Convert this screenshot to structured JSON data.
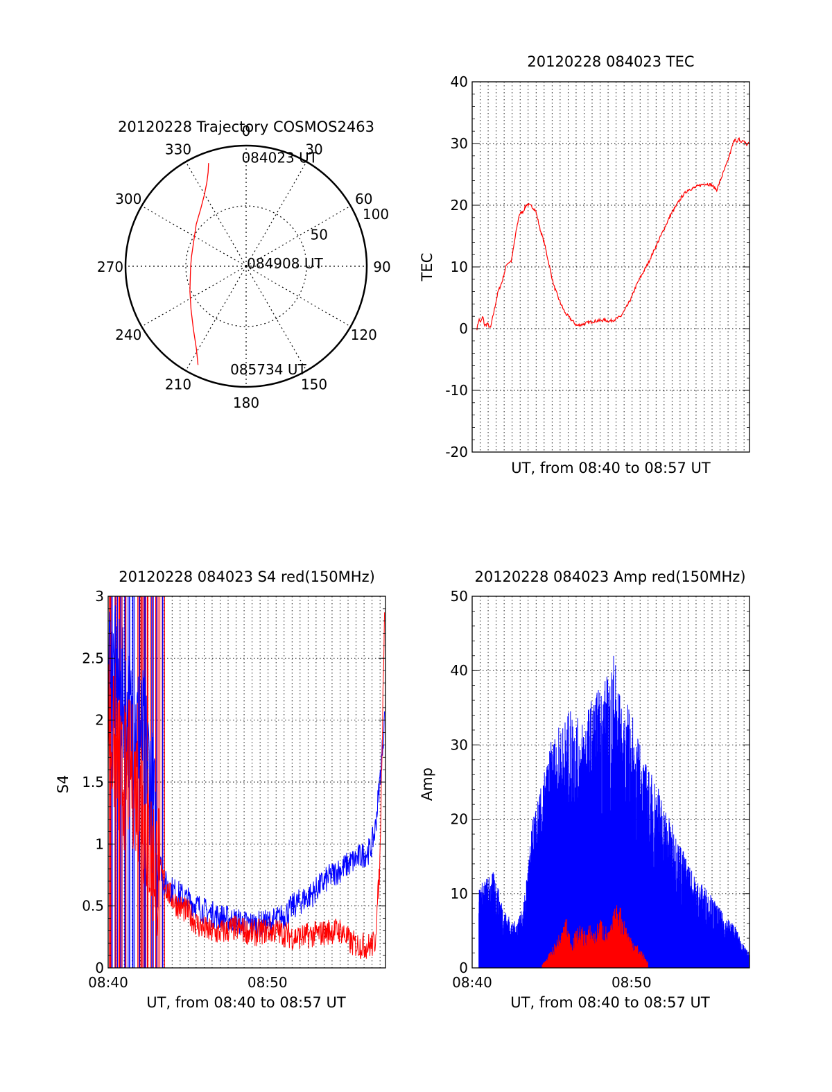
{
  "colors": {
    "red": "#ff0000",
    "blue": "#0000ff",
    "grid": "#000000",
    "frame": "#000000"
  },
  "chart_data": [
    {
      "id": "polar",
      "type": "scatter",
      "subtype": "polar-trajectory",
      "title": "20120228 Trajectory COSMOS2463",
      "radial_ticks": [
        50,
        100
      ],
      "radial_tick_labels": [
        "50",
        "100"
      ],
      "radial_range": [
        0,
        100
      ],
      "angle_labels": [
        {
          "deg": 0,
          "label": "0"
        },
        {
          "deg": 30,
          "label": "30"
        },
        {
          "deg": 60,
          "label": "60"
        },
        {
          "deg": 90,
          "label": "90"
        },
        {
          "deg": 120,
          "label": "120"
        },
        {
          "deg": 150,
          "label": "150"
        },
        {
          "deg": 180,
          "label": "180"
        },
        {
          "deg": 210,
          "label": "210"
        },
        {
          "deg": 240,
          "label": "240"
        },
        {
          "deg": 270,
          "label": "270"
        },
        {
          "deg": 300,
          "label": "300"
        },
        {
          "deg": 330,
          "label": "330"
        }
      ],
      "trajectory": {
        "name": "",
        "azimuth_deg": [
          340,
          338,
          335,
          330,
          322,
          310,
          295,
          280,
          270,
          260,
          246,
          232,
          220,
          211,
          206
        ],
        "radius": [
          91,
          84,
          77,
          69,
          61,
          54,
          48,
          46,
          46,
          47,
          51,
          58,
          68,
          80,
          91
        ]
      },
      "point_labels": [
        {
          "text": "084023 UT",
          "azimuth_deg": 352,
          "radius": 89
        },
        {
          "text": "084908 UT",
          "azimuth_deg": 275,
          "radius": 8
        },
        {
          "text": "085734 UT",
          "azimuth_deg": 194,
          "radius": 90
        }
      ],
      "grid": true
    },
    {
      "id": "tec",
      "type": "line",
      "title": "20120228 084023 TEC",
      "xlabel": "UT, from 08:40 to 08:57 UT",
      "ylabel": "TEC",
      "xlim": [
        8.667,
        8.956
      ],
      "ylim": [
        -20,
        40
      ],
      "yticks": [
        -20,
        -10,
        0,
        10,
        20,
        30,
        40
      ],
      "ytick_labels": [
        "-20",
        "-10",
        "0",
        "10",
        "20",
        "30",
        "40"
      ],
      "xtick_labels": [],
      "grid": true,
      "series": [
        {
          "name": "",
          "color": "red",
          "x": [
            8.672,
            8.674,
            8.676,
            8.678,
            8.68,
            8.683,
            8.686,
            8.69,
            8.694,
            8.698,
            8.703,
            8.708,
            8.712,
            8.716,
            8.72,
            8.724,
            8.729,
            8.733,
            8.738,
            8.742,
            8.747,
            8.752,
            8.758,
            8.764,
            8.77,
            8.776,
            8.782,
            8.788,
            8.794,
            8.8,
            8.805,
            8.81,
            8.816,
            8.822,
            8.828,
            8.833,
            8.838,
            8.843,
            8.85,
            8.856,
            8.862,
            8.868,
            8.874,
            8.88,
            8.886,
            8.892,
            8.898,
            8.904,
            8.91,
            8.916,
            8.922,
            8.928,
            8.933,
            8.938,
            8.941,
            8.943,
            8.945,
            8.947,
            8.95,
            8.953,
            8.956
          ],
          "y": [
            0.0,
            1.5,
            1.0,
            2.0,
            0.5,
            0.8,
            0.0,
            3.0,
            6.0,
            7.5,
            10.5,
            11.0,
            15.0,
            18.5,
            19.0,
            20.2,
            19.8,
            19.2,
            16.0,
            14.0,
            10.5,
            7.0,
            4.5,
            2.5,
            1.5,
            0.5,
            0.7,
            1.0,
            1.2,
            1.3,
            1.4,
            1.2,
            1.5,
            2.0,
            3.5,
            5.0,
            7.0,
            8.5,
            10.5,
            12.5,
            14.5,
            16.5,
            18.5,
            20.0,
            21.5,
            22.5,
            22.8,
            23.2,
            23.5,
            23.3,
            22.5,
            25.0,
            27.0,
            29.5,
            31.0,
            30.0,
            30.8,
            30.2,
            30.5,
            29.8,
            30.0
          ]
        }
      ]
    },
    {
      "id": "s4",
      "type": "line",
      "title": "20120228 084023 S4 red(150MHz)",
      "xlabel": "UT, from 08:40 to 08:57 UT",
      "ylabel": "S4",
      "xlim": [
        8.667,
        8.956
      ],
      "ylim": [
        0,
        3
      ],
      "yticks": [
        0,
        0.5,
        1,
        1.5,
        2,
        2.5,
        3
      ],
      "ytick_labels": [
        "0",
        "0.5",
        "1",
        "1.5",
        "2",
        "2.5",
        "3"
      ],
      "xticks": [
        8.667,
        8.833
      ],
      "xtick_labels": [
        "08:40",
        "08:50"
      ],
      "grid": true,
      "series": [
        {
          "name": "",
          "color": "blue",
          "x": [
            8.667,
            8.68,
            8.69,
            8.7,
            8.705,
            8.71,
            8.715,
            8.72,
            8.725,
            8.73,
            8.74,
            8.75,
            8.76,
            8.77,
            8.78,
            8.79,
            8.8,
            8.81,
            8.82,
            8.83,
            8.84,
            8.85,
            8.86,
            8.87,
            8.88,
            8.89,
            8.9,
            8.91,
            8.92,
            8.93,
            8.94,
            8.945,
            8.95,
            8.955
          ],
          "y": [
            2.5,
            2.2,
            2.0,
            1.9,
            1.8,
            1.6,
            1.2,
            0.9,
            0.7,
            0.65,
            0.6,
            0.55,
            0.5,
            0.45,
            0.42,
            0.4,
            0.38,
            0.36,
            0.35,
            0.36,
            0.38,
            0.42,
            0.5,
            0.55,
            0.6,
            0.68,
            0.75,
            0.8,
            0.85,
            0.9,
            0.95,
            1.1,
            1.5,
            2.0
          ]
        },
        {
          "name": "",
          "color": "red",
          "x": [
            8.667,
            8.68,
            8.69,
            8.7,
            8.705,
            8.71,
            8.715,
            8.72,
            8.725,
            8.73,
            8.74,
            8.75,
            8.76,
            8.77,
            8.78,
            8.79,
            8.8,
            8.81,
            8.82,
            8.83,
            8.84,
            8.85,
            8.86,
            8.87,
            8.88,
            8.89,
            8.9,
            8.91,
            8.92,
            8.93,
            8.94,
            8.945,
            8.95,
            8.955
          ],
          "y": [
            2.0,
            1.5,
            1.6,
            1.4,
            1.2,
            1.0,
            0.85,
            0.8,
            0.7,
            0.6,
            0.5,
            0.45,
            0.35,
            0.3,
            0.28,
            0.3,
            0.32,
            0.3,
            0.28,
            0.3,
            0.3,
            0.28,
            0.25,
            0.25,
            0.27,
            0.28,
            0.3,
            0.3,
            0.2,
            0.18,
            0.18,
            0.2,
            0.8,
            2.9
          ]
        }
      ]
    },
    {
      "id": "amp",
      "type": "line",
      "title": "20120228 084023 Amp red(150MHz)",
      "xlabel": "UT, from 08:40 to 08:57 UT",
      "ylabel": "Amp",
      "xlim": [
        8.667,
        8.956
      ],
      "ylim": [
        0,
        50
      ],
      "yticks": [
        0,
        10,
        20,
        30,
        40,
        50
      ],
      "ytick_labels": [
        "0",
        "10",
        "20",
        "30",
        "40",
        "50"
      ],
      "xticks": [
        8.667,
        8.833
      ],
      "xtick_labels": [
        "08:40",
        "08:50"
      ],
      "grid": true,
      "series": [
        {
          "name": "",
          "color": "blue",
          "x": [
            8.674,
            8.68,
            8.69,
            8.7,
            8.71,
            8.72,
            8.725,
            8.73,
            8.74,
            8.75,
            8.76,
            8.77,
            8.78,
            8.79,
            8.8,
            8.81,
            8.815,
            8.82,
            8.825,
            8.83,
            8.84,
            8.85,
            8.86,
            8.87,
            8.88,
            8.89,
            8.9,
            8.91,
            8.92,
            8.93,
            8.94,
            8.95,
            8.956
          ],
          "y": [
            11,
            12,
            13,
            8,
            6,
            8,
            14,
            20,
            25,
            31,
            33,
            35,
            33,
            36,
            38,
            40,
            43,
            38,
            33,
            36,
            31,
            27,
            25,
            21,
            18,
            15,
            12,
            11,
            9,
            7,
            6,
            3,
            2
          ]
        },
        {
          "name": "",
          "color": "red",
          "x": [
            8.74,
            8.745,
            8.75,
            8.755,
            8.76,
            8.765,
            8.77,
            8.775,
            8.78,
            8.785,
            8.79,
            8.795,
            8.8,
            8.805,
            8.81,
            8.815,
            8.82,
            8.825,
            8.83,
            8.835,
            8.84,
            8.845,
            8.85
          ],
          "y": [
            0.5,
            1.5,
            2.5,
            4,
            5,
            7,
            4,
            5,
            6,
            5,
            6,
            5,
            7,
            6,
            5,
            8,
            9,
            7,
            5,
            4,
            3,
            2,
            1
          ]
        }
      ]
    }
  ]
}
